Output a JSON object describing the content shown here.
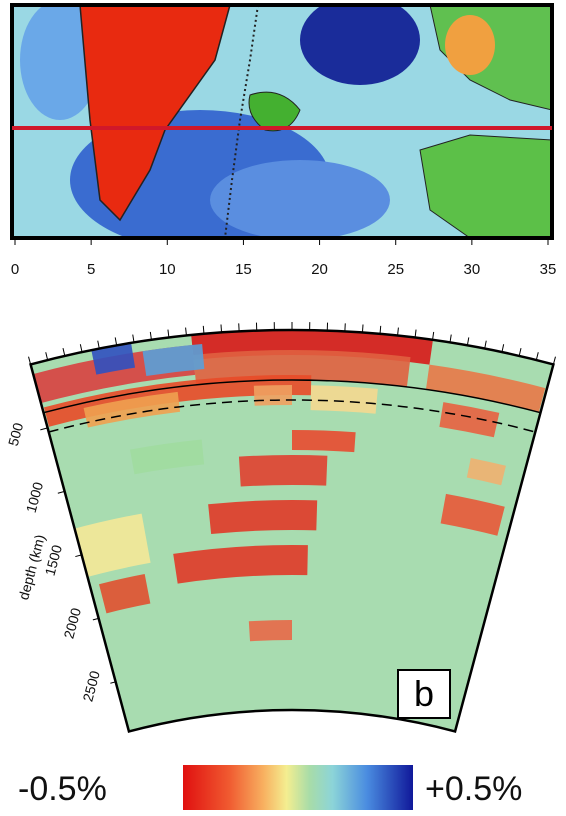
{
  "map": {
    "xticks": [
      0,
      5,
      10,
      15,
      20,
      25,
      30,
      35
    ]
  },
  "section": {
    "axis_label": "depth (km)",
    "depth_ticks": [
      500,
      1000,
      1500,
      2000,
      2500
    ],
    "panel_label": "b"
  },
  "colorbar": {
    "min_label": "-0.5%",
    "max_label": "+0.5%"
  }
}
